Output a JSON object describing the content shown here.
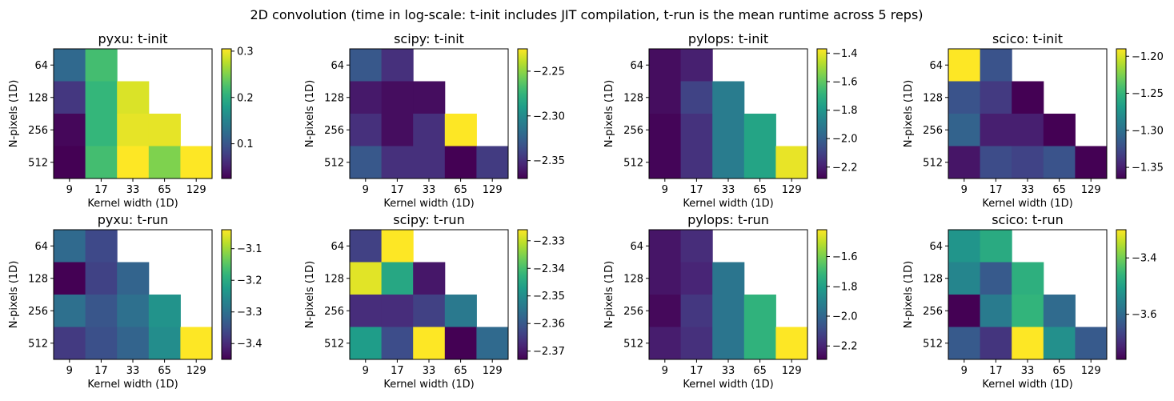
{
  "title": "2D convolution (time in log-scale: t-init includes JIT compilation, t-run is the mean runtime across 5 reps)",
  "xlabel": "Kernel width (1D)",
  "ylabel": "N-pixels (1D)",
  "colormap": "viridis",
  "colormap_stops": [
    "#440154",
    "#482878",
    "#3e4a89",
    "#31688e",
    "#26828e",
    "#1f9e89",
    "#35b779",
    "#6ece58",
    "#b5de2b",
    "#fde725"
  ],
  "chart_data": [
    {
      "type": "heatmap",
      "title": "pyxu: t-init",
      "x": [
        "9",
        "17",
        "33",
        "65",
        "129"
      ],
      "y": [
        "64",
        "128",
        "256",
        "512"
      ],
      "values": [
        [
          0.12,
          0.22,
          null,
          null,
          null
        ],
        [
          0.07,
          0.21,
          0.29,
          null,
          null
        ],
        [
          0.03,
          0.21,
          0.295,
          0.295,
          null
        ],
        [
          0.025,
          0.22,
          0.305,
          0.25,
          0.305
        ]
      ],
      "colorbar": {
        "min": 0.025,
        "max": 0.305,
        "ticks": [
          0.1,
          0.2,
          0.3
        ],
        "tick_labels": [
          "0.1",
          "0.2",
          "0.3"
        ]
      }
    },
    {
      "type": "heatmap",
      "title": "scipy: t-init",
      "x": [
        "9",
        "17",
        "33",
        "65",
        "129"
      ],
      "y": [
        "64",
        "128",
        "256",
        "512"
      ],
      "values": [
        [
          -2.33,
          -2.35,
          null,
          null,
          null
        ],
        [
          -2.36,
          -2.365,
          -2.365,
          null,
          null
        ],
        [
          -2.35,
          -2.365,
          -2.35,
          -2.225,
          null
        ],
        [
          -2.33,
          -2.35,
          -2.35,
          -2.37,
          -2.345
        ]
      ],
      "colorbar": {
        "min": -2.37,
        "max": -2.225,
        "ticks": [
          -2.35,
          -2.3,
          -2.25
        ],
        "tick_labels": [
          "−2.35",
          "−2.30",
          "−2.25"
        ]
      }
    },
    {
      "type": "heatmap",
      "title": "pylops: t-init",
      "x": [
        "9",
        "17",
        "33",
        "65",
        "129"
      ],
      "y": [
        "64",
        "128",
        "256",
        "512"
      ],
      "values": [
        [
          -2.25,
          -2.2,
          null,
          null,
          null
        ],
        [
          -2.25,
          -2.1,
          -1.9,
          null,
          null
        ],
        [
          -2.27,
          -2.15,
          -1.9,
          -1.75,
          null
        ],
        [
          -2.27,
          -2.15,
          -1.9,
          -1.75,
          -1.4
        ]
      ],
      "colorbar": {
        "min": -2.28,
        "max": -1.37,
        "ticks": [
          -2.2,
          -2.0,
          -1.8,
          -1.6,
          -1.4
        ],
        "tick_labels": [
          "−2.2",
          "−2.0",
          "−1.8",
          "−1.6",
          "−1.4"
        ]
      }
    },
    {
      "type": "heatmap",
      "title": "scico: t-init",
      "x": [
        "9",
        "17",
        "33",
        "65",
        "129"
      ],
      "y": [
        "64",
        "128",
        "256",
        "512"
      ],
      "values": [
        [
          -1.19,
          -1.32,
          null,
          null,
          null
        ],
        [
          -1.32,
          -1.335,
          -1.365,
          null,
          null
        ],
        [
          -1.31,
          -1.35,
          -1.35,
          -1.365,
          null
        ],
        [
          -1.355,
          -1.325,
          -1.33,
          -1.32,
          -1.365
        ]
      ],
      "colorbar": {
        "min": -1.365,
        "max": -1.19,
        "ticks": [
          -1.35,
          -1.3,
          -1.25,
          -1.2
        ],
        "tick_labels": [
          "−1.35",
          "−1.30",
          "−1.25",
          "−1.20"
        ]
      }
    },
    {
      "type": "heatmap",
      "title": "pyxu: t-run",
      "x": [
        "9",
        "17",
        "33",
        "65",
        "129"
      ],
      "y": [
        "64",
        "128",
        "256",
        "512"
      ],
      "values": [
        [
          -3.31,
          -3.36,
          null,
          null,
          null
        ],
        [
          -3.45,
          -3.37,
          -3.32,
          null,
          null
        ],
        [
          -3.3,
          -3.34,
          -3.3,
          -3.24,
          null
        ],
        [
          -3.38,
          -3.35,
          -3.32,
          -3.25,
          -3.04
        ]
      ],
      "colorbar": {
        "min": -3.45,
        "max": -3.04,
        "ticks": [
          -3.4,
          -3.3,
          -3.2,
          -3.1
        ],
        "tick_labels": [
          "−3.4",
          "−3.3",
          "−3.2",
          "−3.1"
        ]
      }
    },
    {
      "type": "heatmap",
      "title": "scipy: t-run",
      "x": [
        "9",
        "17",
        "33",
        "65",
        "129"
      ],
      "y": [
        "64",
        "128",
        "256",
        "512"
      ],
      "values": [
        [
          -2.364,
          -2.326,
          null,
          null,
          null
        ],
        [
          -2.328,
          -2.345,
          -2.37,
          null,
          null
        ],
        [
          -2.367,
          -2.367,
          -2.364,
          -2.354,
          null
        ],
        [
          -2.347,
          -2.362,
          -2.326,
          -2.373,
          -2.357
        ]
      ],
      "colorbar": {
        "min": -2.373,
        "max": -2.326,
        "ticks": [
          -2.37,
          -2.36,
          -2.35,
          -2.34,
          -2.33
        ],
        "tick_labels": [
          "−2.37",
          "−2.36",
          "−2.35",
          "−2.34",
          "−2.33"
        ]
      }
    },
    {
      "type": "heatmap",
      "title": "pylops: t-run",
      "x": [
        "9",
        "17",
        "33",
        "65",
        "129"
      ],
      "y": [
        "64",
        "128",
        "256",
        "512"
      ],
      "values": [
        [
          -2.24,
          -2.18,
          null,
          null,
          null
        ],
        [
          -2.24,
          -2.2,
          -1.95,
          null,
          null
        ],
        [
          -2.27,
          -2.15,
          -1.95,
          -1.73,
          null
        ],
        [
          -2.22,
          -2.17,
          -1.95,
          -1.73,
          -1.42
        ]
      ],
      "colorbar": {
        "min": -2.29,
        "max": -1.42,
        "ticks": [
          -2.2,
          -2.0,
          -1.8,
          -1.6
        ],
        "tick_labels": [
          "−2.2",
          "−2.0",
          "−1.8",
          "−1.6"
        ]
      }
    },
    {
      "type": "heatmap",
      "title": "scico: t-run",
      "x": [
        "9",
        "17",
        "33",
        "65",
        "129"
      ],
      "y": [
        "64",
        "128",
        "256",
        "512"
      ],
      "values": [
        [
          -3.52,
          -3.48,
          null,
          null,
          null
        ],
        [
          -3.55,
          -3.63,
          -3.47,
          null,
          null
        ],
        [
          -3.76,
          -3.57,
          -3.46,
          -3.6,
          null
        ],
        [
          -3.63,
          -3.69,
          -3.3,
          -3.53,
          -3.63
        ]
      ],
      "colorbar": {
        "min": -3.76,
        "max": -3.3,
        "ticks": [
          -3.6,
          -3.4
        ],
        "tick_labels": [
          "−3.6",
          "−3.4"
        ]
      }
    }
  ]
}
